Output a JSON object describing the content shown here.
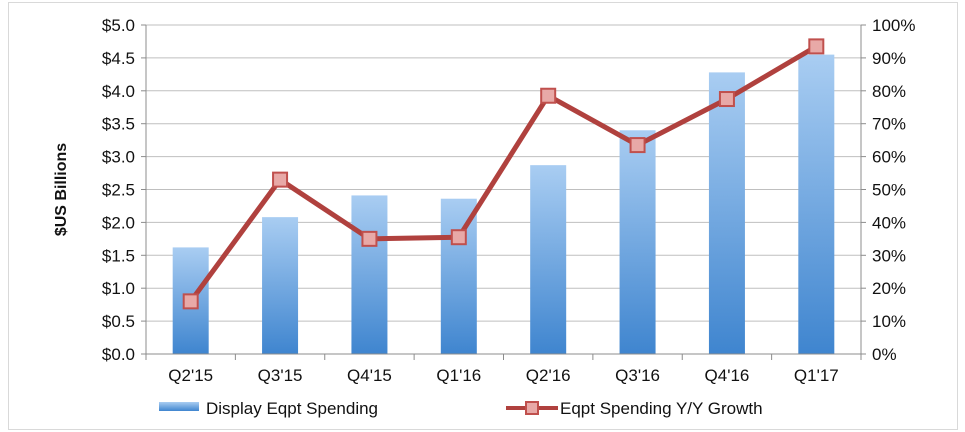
{
  "chart_data": {
    "type": "bar+line",
    "categories": [
      "Q2'15",
      "Q3'15",
      "Q4'15",
      "Q1'16",
      "Q2'16",
      "Q3'16",
      "Q4'16",
      "Q1'17"
    ],
    "series": [
      {
        "name": "Display Eqpt Spending",
        "type": "bar",
        "axis": "left",
        "color": "#5b9bd5",
        "values": [
          1.62,
          2.08,
          2.41,
          2.36,
          2.87,
          3.4,
          4.28,
          4.55
        ]
      },
      {
        "name": "Eqpt Spending Y/Y Growth",
        "type": "line",
        "axis": "right",
        "color": "#c0504d",
        "values": [
          16,
          53,
          35,
          35.5,
          78.5,
          63.5,
          77.5,
          93.5
        ]
      }
    ],
    "ylabel": "$US Billions",
    "ylim": [
      0,
      5.0
    ],
    "y_ticks": [
      "$0.0",
      "$0.5",
      "$1.0",
      "$1.5",
      "$2.0",
      "$2.5",
      "$3.0",
      "$3.5",
      "$4.0",
      "$4.5",
      "$5.0"
    ],
    "y2lim": [
      0,
      100
    ],
    "y2_ticks": [
      "0%",
      "10%",
      "20%",
      "30%",
      "40%",
      "50%",
      "60%",
      "70%",
      "80%",
      "90%",
      "100%"
    ],
    "grid": "horizontal",
    "legend_position": "bottom"
  }
}
